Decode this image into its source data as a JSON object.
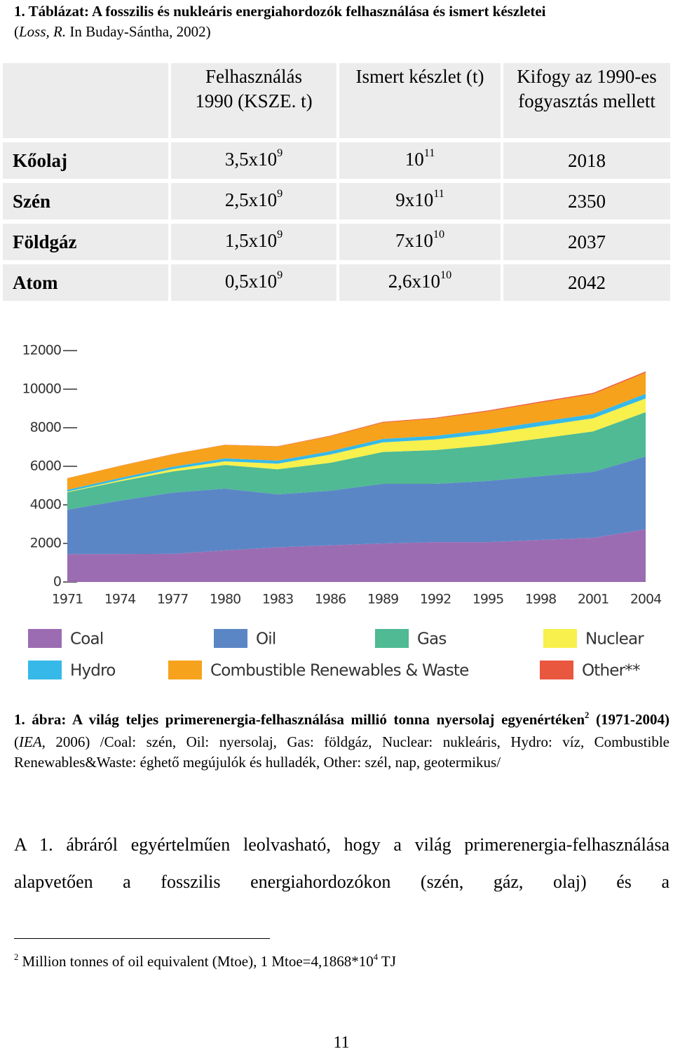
{
  "header": {
    "title": "1. Táblázat: A fosszilis és nukleáris energiahordozók felhasználása és ismert készletei",
    "source_open": "(",
    "source_author": "Loss, R.",
    "source_rest": " In Buday-Sántha, 2002)"
  },
  "table": {
    "header": [
      "Felhasználás 1990 (KSZE. t)",
      "Ismert készlet (t)",
      "Kifogy az 1990-es fogyasztás mellett"
    ],
    "rows": [
      {
        "label": "Kőolaj",
        "cells": [
          {
            "base": "3,5x10",
            "exp": "9"
          },
          {
            "base": "10",
            "exp": "11"
          },
          "2018"
        ]
      },
      {
        "label": "Szén",
        "cells": [
          {
            "base": "2,5x10",
            "exp": "9"
          },
          {
            "base": "9x10",
            "exp": "11"
          },
          "2350"
        ]
      },
      {
        "label": "Földgáz",
        "cells": [
          {
            "base": "1,5x10",
            "exp": "9"
          },
          {
            "base": "7x10",
            "exp": "10"
          },
          "2037"
        ]
      },
      {
        "label": "Atom",
        "cells": [
          {
            "base": "0,5x10",
            "exp": "9"
          },
          {
            "base": "2,6x10",
            "exp": "10"
          },
          "2042"
        ]
      }
    ]
  },
  "chart_data": {
    "type": "area",
    "stacked": true,
    "x": [
      1971,
      1974,
      1977,
      1980,
      1983,
      1986,
      1989,
      1992,
      1995,
      1998,
      2001,
      2004
    ],
    "xlim": [
      1971,
      2004
    ],
    "xticks": [
      1971,
      1974,
      1977,
      1980,
      1983,
      1986,
      1989,
      1992,
      1995,
      1998,
      2001,
      2004
    ],
    "ylim": [
      0,
      12000
    ],
    "yticks": [
      0,
      2000,
      4000,
      6000,
      8000,
      10000,
      12000
    ],
    "series": [
      {
        "name": "Coal",
        "color": "#9c6cb2",
        "values": [
          1450,
          1450,
          1460,
          1640,
          1800,
          1900,
          2000,
          2070,
          2070,
          2180,
          2290,
          2730
        ]
      },
      {
        "name": "Oil",
        "color": "#5b86c6",
        "values": [
          2300,
          2770,
          3170,
          3200,
          2745,
          2830,
          3090,
          3020,
          3170,
          3310,
          3420,
          3780
        ]
      },
      {
        "name": "Gas",
        "color": "#4fba94",
        "values": [
          900,
          1000,
          1100,
          1230,
          1300,
          1450,
          1650,
          1750,
          1850,
          1950,
          2100,
          2300
        ]
      },
      {
        "name": "Nuclear",
        "color": "#f8f04c",
        "values": [
          30,
          60,
          120,
          190,
          290,
          430,
          500,
          550,
          600,
          650,
          680,
          710
        ]
      },
      {
        "name": "Hydro",
        "color": "#36b9e8",
        "values": [
          100,
          110,
          125,
          150,
          160,
          170,
          180,
          190,
          210,
          220,
          220,
          240
        ]
      },
      {
        "name": "Combustible Renewables & Waste",
        "color": "#f6a21c",
        "values": [
          600,
          630,
          650,
          700,
          730,
          780,
          850,
          900,
          950,
          1000,
          1040,
          1100
        ]
      },
      {
        "name": "Other**",
        "color": "#e9573f",
        "values": [
          5,
          6,
          8,
          10,
          15,
          25,
          35,
          40,
          45,
          50,
          55,
          60
        ]
      }
    ]
  },
  "caption": {
    "label": "1. ábra: A világ teljes primerenergia-felhasználása millió tonna nyersolaj egyenértéken",
    "note_ref": "2",
    "period": " (1971-2004)",
    "source_open": " (",
    "source_author": "IEA",
    "text": ", 2006) /Coal: szén, Oil: nyersolaj, Gas: földgáz, Nuclear: nukleáris, Hydro: víz, Combustible Renewables&Waste: éghető megújulók és hulladék, Other: szél, nap, geotermikus/"
  },
  "paragraph": "A 1. ábráról egyértelműen leolvasható, hogy a világ primerenergia-felhasználása alapvetően a fosszilis energiahordozókon (szén, gáz, olaj) és a",
  "footnote": {
    "mark": "2",
    "text": " Million tonnes of oil equivalent (Mtoe), 1 Mtoe=4,1868*10",
    "exp": "4",
    "unit": " TJ"
  },
  "page_number": "11"
}
